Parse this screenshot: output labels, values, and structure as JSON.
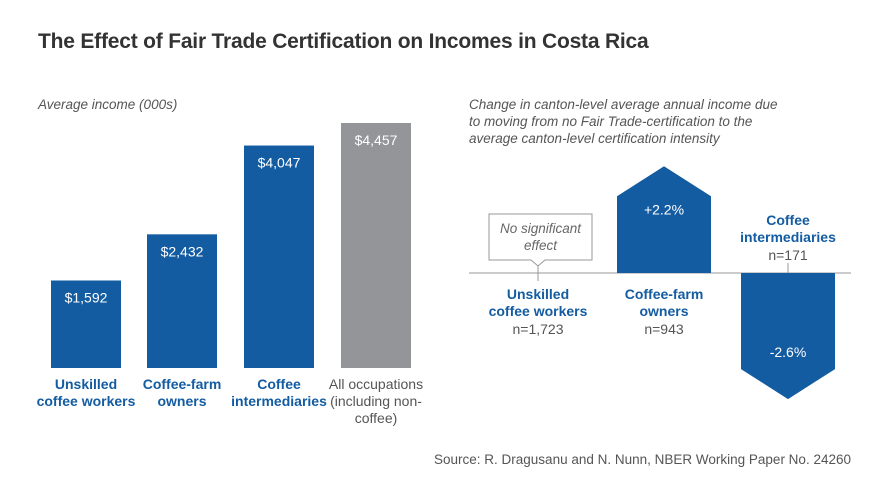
{
  "title": "The Effect of Fair Trade Certification on Incomes in Costa Rica",
  "source": "Source: R. Dragusanu and N. Nunn, NBER Working Paper No. 24260",
  "chart_data": [
    {
      "type": "bar",
      "subtitle": "Average income (000s)",
      "categories": [
        "Unskilled coffee workers",
        "Coffee-farm owners",
        "Coffee intermediaries",
        "All occupations (including non-coffee)"
      ],
      "values": [
        1592,
        2432,
        4047,
        4457
      ],
      "value_labels": [
        "$1,592",
        "$2,432",
        "$4,047",
        "$4,457"
      ],
      "colors": [
        "#135ca2",
        "#135ca2",
        "#135ca2",
        "#939598"
      ],
      "label_colors": [
        "#135ca2",
        "#135ca2",
        "#135ca2",
        "#555555"
      ]
    },
    {
      "type": "arrow",
      "subtitle": "Change in canton-level average annual income due to moving from no Fair Trade-certification to the average canton-level certification intensity",
      "categories": [
        "Unskilled coffee workers",
        "Coffee-farm owners",
        "Coffee intermediaries"
      ],
      "counts": [
        "n=1,723",
        "n=943",
        "n=171"
      ],
      "values": [
        null,
        2.2,
        -2.6
      ],
      "value_labels": [
        null,
        "+2.2%",
        "-2.6%"
      ],
      "annotation": "No significant effect",
      "color": "#135ca2"
    }
  ]
}
